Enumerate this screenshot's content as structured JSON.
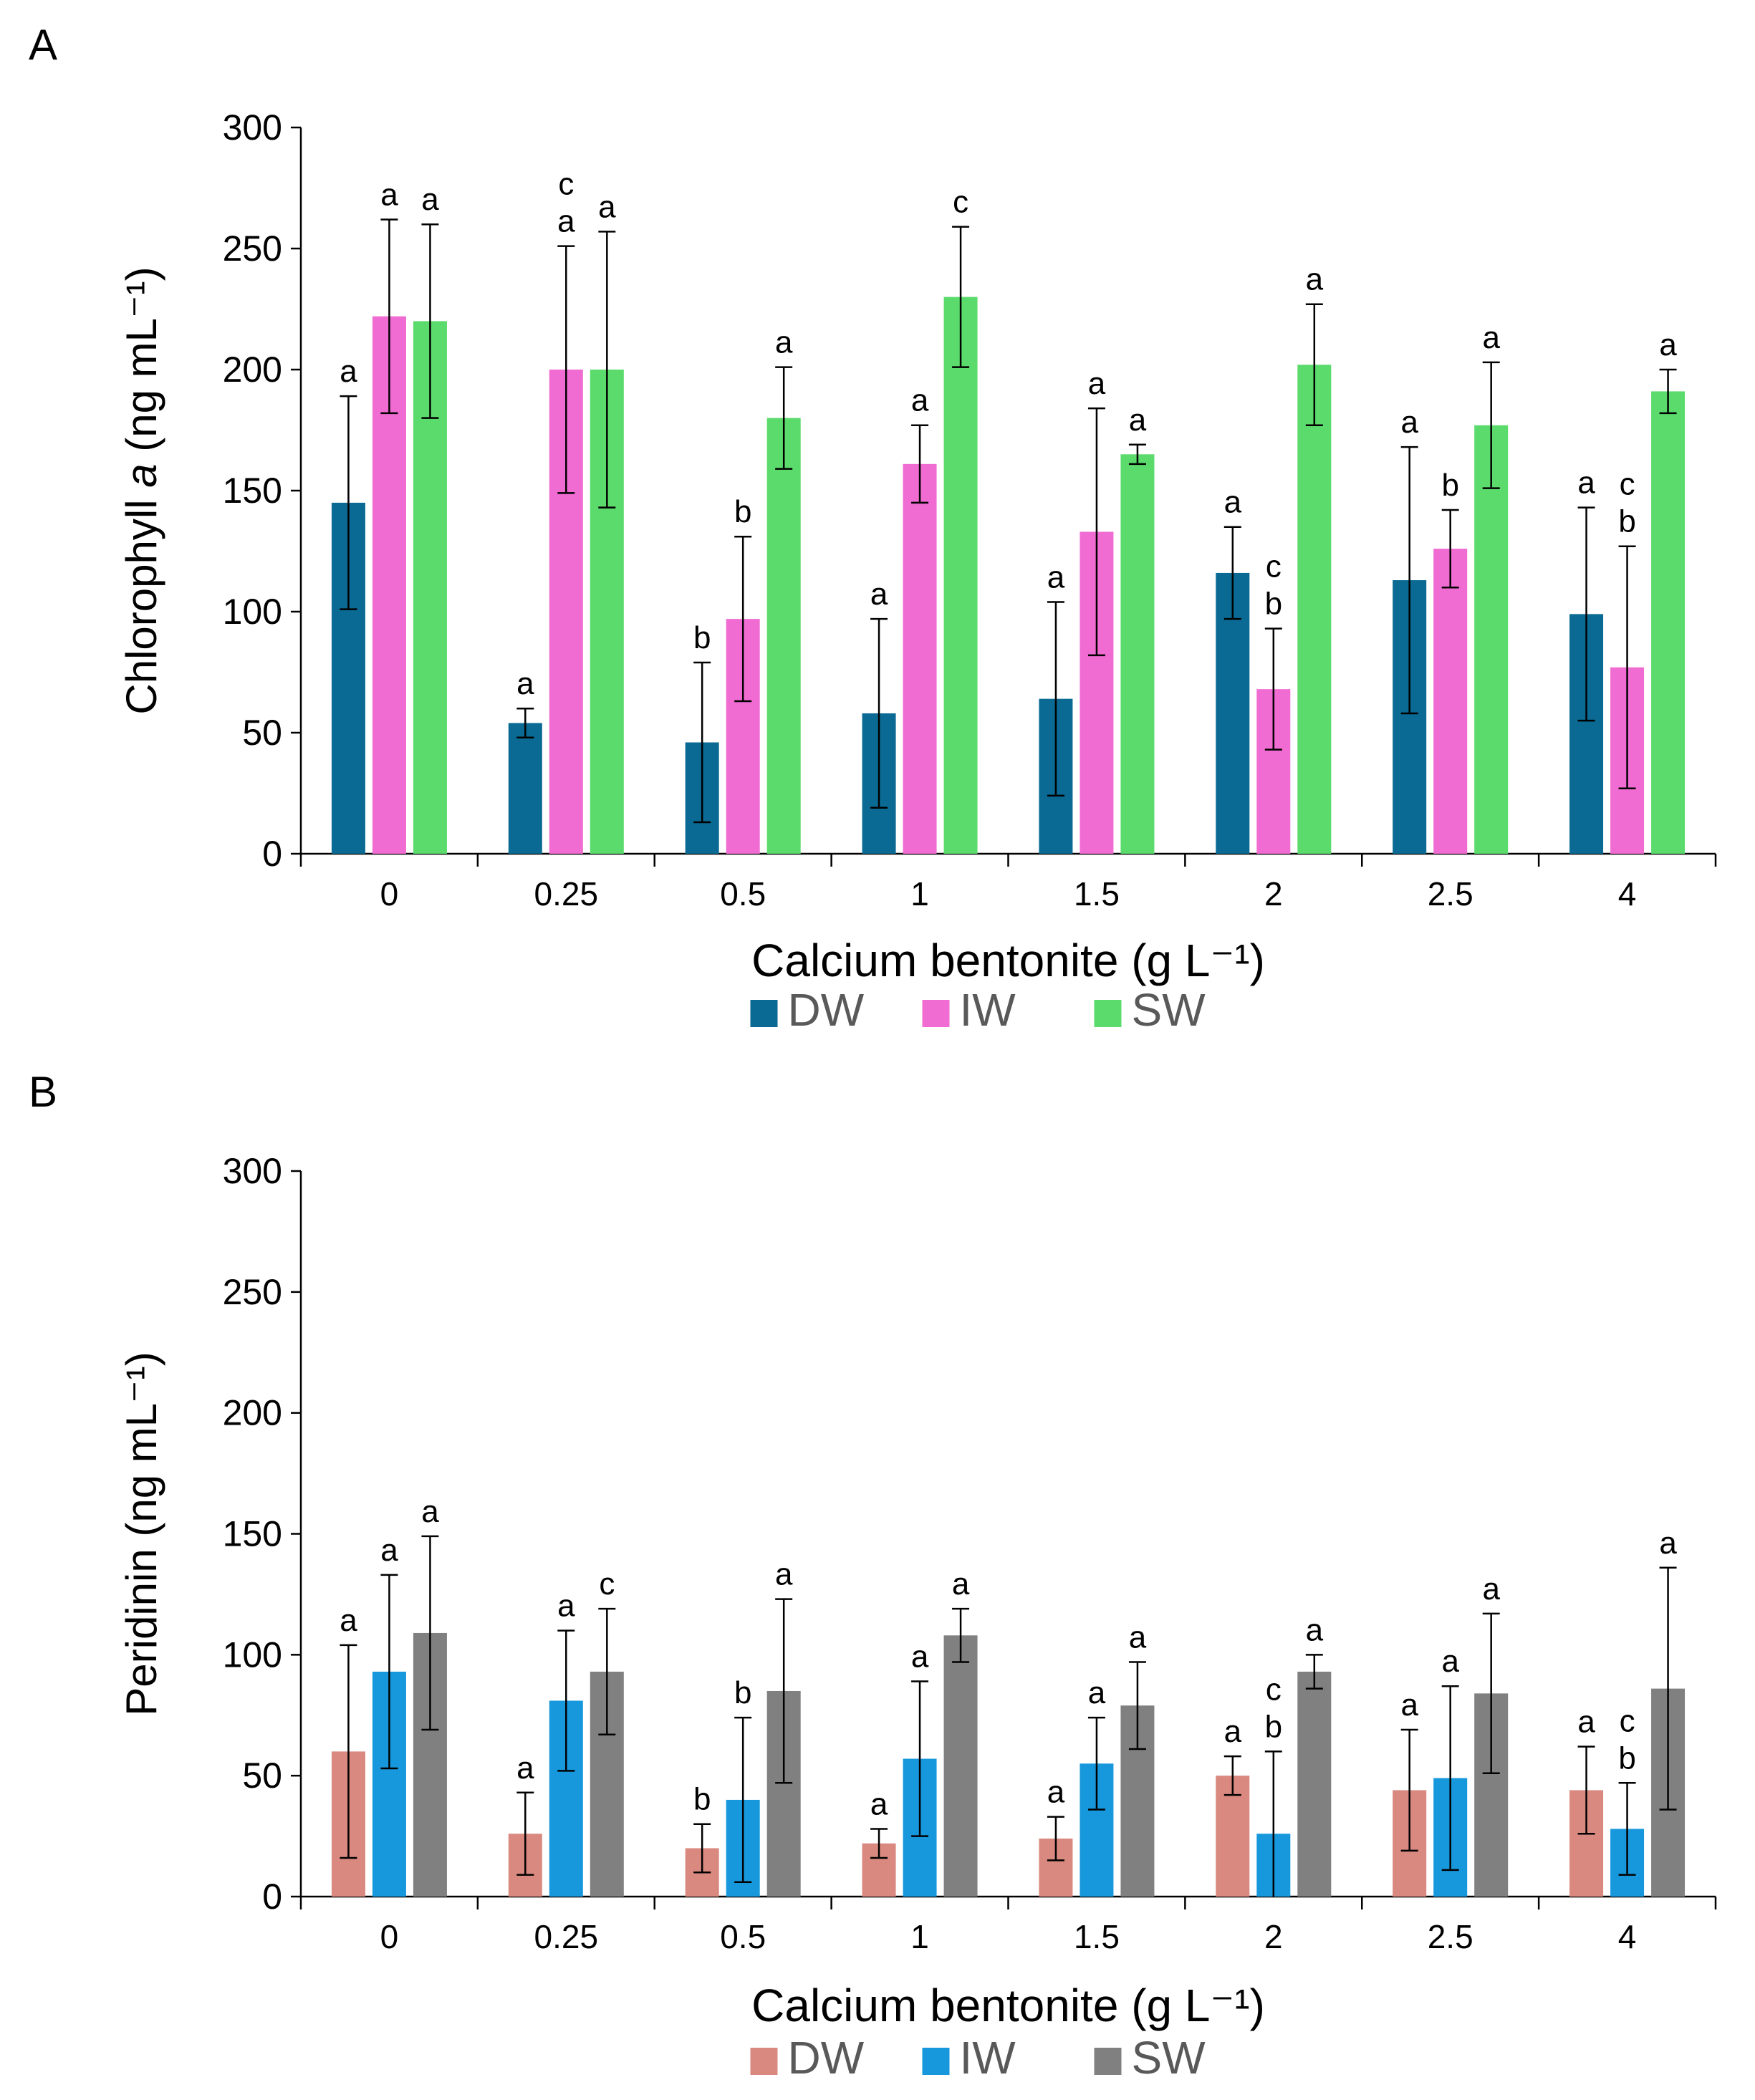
{
  "chart_data": [
    {
      "panel": "A",
      "type": "bar",
      "title": "",
      "xlabel": "Calcium bentonite (g L⁻¹)",
      "ylabel_prefix": "Chlorophyll ",
      "ylabel_italic": "a",
      "ylabel_suffix": " (ng mL⁻¹)",
      "ylim": [
        0,
        300
      ],
      "yticks": [
        "0",
        "50",
        "100",
        "150",
        "200",
        "250",
        "300"
      ],
      "categories": [
        "0",
        "0.25",
        "0.5",
        "1",
        "1.5",
        "2",
        "2.5",
        "4"
      ],
      "legend_position": "bottom",
      "series": [
        {
          "name": "DW",
          "color": "#0A6A93",
          "values": [
            145,
            54,
            46,
            58,
            64,
            116,
            113,
            99
          ],
          "errors": [
            44,
            6,
            33,
            39,
            40,
            19,
            55,
            44
          ],
          "letters": [
            "a",
            "a",
            "b",
            "a",
            "a",
            "a",
            "a",
            "a"
          ]
        },
        {
          "name": "IW",
          "color": "#F06CD2",
          "values": [
            222,
            200,
            97,
            161,
            133,
            68,
            126,
            77
          ],
          "errors": [
            40,
            51,
            34,
            16,
            51,
            25,
            16,
            50
          ],
          "letters": [
            "a",
            "c\na",
            "b",
            "a",
            "a",
            "c\nb",
            "b",
            "c\nb"
          ]
        },
        {
          "name": "SW",
          "color": "#5BDB6C",
          "values": [
            220,
            200,
            180,
            230,
            165,
            202,
            177,
            191
          ],
          "errors": [
            40,
            57,
            21,
            29,
            4,
            25,
            26,
            9
          ],
          "letters": [
            "a",
            "a",
            "a",
            "c",
            "a",
            "a",
            "a",
            "a"
          ]
        }
      ]
    },
    {
      "panel": "B",
      "type": "bar",
      "title": "",
      "xlabel": "Calcium bentonite (g L⁻¹)",
      "ylabel_prefix": "Peridinin (ng mL⁻¹)",
      "ylabel_italic": "",
      "ylabel_suffix": "",
      "ylim": [
        0,
        300
      ],
      "yticks": [
        "0",
        "50",
        "100",
        "150",
        "200",
        "250",
        "300"
      ],
      "categories": [
        "0",
        "0.25",
        "0.5",
        "1",
        "1.5",
        "2",
        "2.5",
        "4"
      ],
      "legend_position": "bottom",
      "series": [
        {
          "name": "DW",
          "color": "#D9897F",
          "values": [
            60,
            26,
            20,
            22,
            24,
            50,
            44,
            44
          ],
          "errors": [
            44,
            17,
            10,
            6,
            9,
            8,
            25,
            18
          ],
          "letters": [
            "a",
            "a",
            "b",
            "a",
            "a",
            "a",
            "a",
            "a"
          ]
        },
        {
          "name": "IW",
          "color": "#1898DC",
          "values": [
            93,
            81,
            40,
            57,
            55,
            26,
            49,
            28
          ],
          "errors": [
            40,
            29,
            34,
            32,
            19,
            34,
            38,
            19
          ],
          "letters": [
            "a",
            "a",
            "b",
            "a",
            "a",
            "c\nb",
            "a",
            "c\nb"
          ]
        },
        {
          "name": "SW",
          "color": "#808080",
          "values": [
            109,
            93,
            85,
            108,
            79,
            93,
            84,
            86
          ],
          "errors": [
            40,
            26,
            38,
            11,
            18,
            7,
            33,
            50
          ],
          "letters": [
            "a",
            "c",
            "a",
            "a",
            "a",
            "a",
            "a",
            "a"
          ]
        }
      ]
    }
  ]
}
